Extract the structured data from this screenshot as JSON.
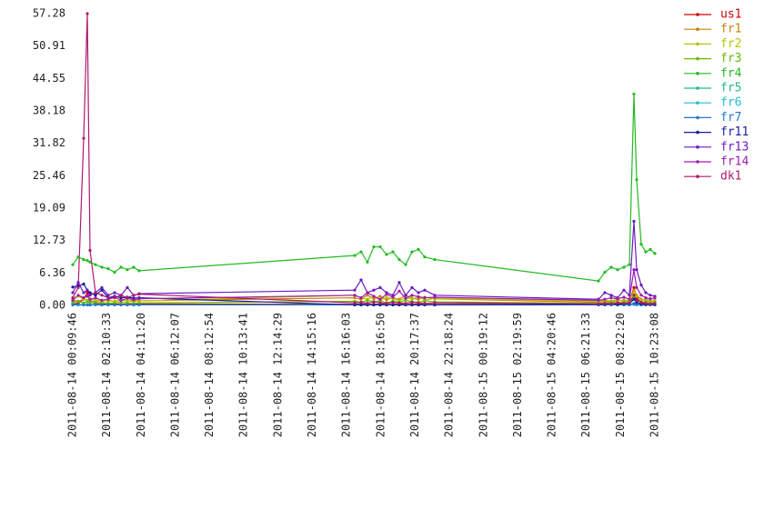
{
  "chart_data": {
    "type": "line",
    "x": [
      "2011-08-14 00:09:46",
      "2011-08-14 00:29:01",
      "2011-08-14 00:48:16",
      "2011-08-14 01:01:06",
      "2011-08-14 01:10:43",
      "2011-08-14 01:29:58",
      "2011-08-14 01:52:26",
      "2011-08-14 02:14:53",
      "2011-08-14 02:37:21",
      "2011-08-14 02:59:48",
      "2011-08-14 03:22:16",
      "2011-08-14 03:44:43",
      "2011-08-14 04:03:58",
      "2011-08-14 16:44:21",
      "2011-08-14 17:06:48",
      "2011-08-14 17:29:16",
      "2011-08-14 17:51:43",
      "2011-08-14 18:14:11",
      "2011-08-14 18:36:38",
      "2011-08-14 18:59:06",
      "2011-08-14 19:21:33",
      "2011-08-14 19:44:01",
      "2011-08-14 20:06:28",
      "2011-08-14 20:28:56",
      "2011-08-14 20:51:23",
      "2011-08-14 21:26:40",
      "2011-08-15 07:04:11",
      "2011-08-15 07:26:38",
      "2011-08-15 07:49:06",
      "2011-08-15 08:11:33",
      "2011-08-15 08:34:01",
      "2011-08-15 08:53:16",
      "2011-08-15 09:09:18",
      "2011-08-15 09:18:56",
      "2011-08-15 09:34:58",
      "2011-08-15 09:51:01",
      "2011-08-15 10:07:03",
      "2011-08-15 10:23:08"
    ],
    "xlim": [
      "2011-08-14 00:09:46",
      "2011-08-15 10:23:08"
    ],
    "xticks": [
      "2011-08-14 00:09:46",
      "2011-08-14 02:10:33",
      "2011-08-14 04:11:20",
      "2011-08-14 06:12:07",
      "2011-08-14 08:12:54",
      "2011-08-14 10:13:41",
      "2011-08-14 12:14:29",
      "2011-08-14 14:15:16",
      "2011-08-14 16:16:03",
      "2011-08-14 18:16:50",
      "2011-08-14 20:17:37",
      "2011-08-14 22:18:24",
      "2011-08-15 00:19:12",
      "2011-08-15 02:19:59",
      "2011-08-15 04:20:46",
      "2011-08-15 06:21:33",
      "2011-08-15 08:22:20",
      "2011-08-15 10:23:08"
    ],
    "ylim": [
      0,
      57.28
    ],
    "yticks": [
      {
        "value": 0,
        "label": "0.00"
      },
      6.36,
      12.73,
      19.09,
      25.46,
      31.82,
      38.18,
      44.55,
      50.91,
      57.28
    ],
    "grid": false,
    "legend": "right",
    "series": [
      {
        "name": "us1",
        "color": "#cc0000",
        "values": [
          0.3,
          0.4,
          1.2,
          2.5,
          0.8,
          0.3,
          0.3,
          0.2,
          0.3,
          0.2,
          0.3,
          0.2,
          0.3,
          0.2,
          0.3,
          0.2,
          0.2,
          0.3,
          0.2,
          0.2,
          0.3,
          0.2,
          0.2,
          0.3,
          0.2,
          0.2,
          0.2,
          0.2,
          0.3,
          0.2,
          0.3,
          0.5,
          3.5,
          1.5,
          0.5,
          0.3,
          0.2,
          0.3
        ]
      },
      {
        "name": "fr1",
        "color": "#c8800a",
        "values": [
          1.0,
          0.8,
          1.2,
          1.0,
          0.9,
          0.8,
          1.0,
          0.9,
          0.8,
          1.0,
          0.9,
          0.8,
          0.9,
          1.5,
          1.2,
          2.0,
          1.3,
          1.8,
          1.1,
          1.5,
          1.2,
          2.0,
          1.4,
          1.2,
          1.6,
          1.3,
          0.6,
          0.8,
          0.7,
          0.9,
          1.0,
          0.8,
          3.0,
          2.0,
          1.2,
          0.9,
          0.8,
          1.0
        ]
      },
      {
        "name": "fr2",
        "color": "#b8c400",
        "values": [
          1.5,
          1.8,
          1.2,
          1.0,
          1.3,
          1.1,
          0.9,
          1.0,
          0.8,
          1.1,
          0.9,
          1.0,
          0.9,
          2.0,
          1.5,
          1.2,
          1.8,
          1.0,
          1.6,
          1.3,
          0.9,
          1.5,
          1.2,
          1.7,
          1.0,
          1.4,
          0.8,
          1.0,
          0.9,
          1.2,
          0.8,
          1.1,
          2.5,
          1.8,
          1.0,
          1.2,
          0.9,
          1.1
        ]
      },
      {
        "name": "fr3",
        "color": "#66bb00",
        "values": [
          0.6,
          0.8,
          0.5,
          0.7,
          0.6,
          0.5,
          0.6,
          0.4,
          0.5,
          0.6,
          0.5,
          0.4,
          0.5,
          0.8,
          0.6,
          1.0,
          0.7,
          0.9,
          0.5,
          0.8,
          0.6,
          1.0,
          0.7,
          0.6,
          0.9,
          0.7,
          0.4,
          0.5,
          0.6,
          0.5,
          0.7,
          0.6,
          1.5,
          1.0,
          0.7,
          0.6,
          0.5,
          0.6
        ]
      },
      {
        "name": "fr4",
        "color": "#22bb22",
        "values": [
          8.0,
          9.5,
          9.0,
          8.8,
          8.5,
          8.0,
          7.5,
          7.2,
          6.5,
          7.5,
          7.0,
          7.5,
          6.8,
          9.8,
          10.5,
          8.5,
          11.5,
          11.5,
          10.0,
          10.5,
          9.0,
          8.0,
          10.5,
          11.0,
          9.5,
          9.0,
          4.8,
          6.5,
          7.5,
          7.0,
          7.5,
          8.0,
          41.5,
          24.7,
          12.0,
          10.5,
          11.0,
          10.2
        ]
      },
      {
        "name": "fr5",
        "color": "#22bb88",
        "values": [
          0.2,
          0.1,
          0.2,
          0.1,
          0.2,
          0.1,
          0.1,
          0.2,
          0.1,
          0.1,
          0.2,
          0.1,
          0.1,
          0.1,
          0.2,
          0.1,
          0.1,
          0.2,
          0.1,
          0.1,
          0.2,
          0.1,
          0.1,
          0.2,
          0.1,
          0.1,
          0.1,
          0.1,
          0.2,
          0.1,
          0.1,
          0.2,
          0.4,
          0.3,
          0.2,
          0.1,
          0.1,
          0.1
        ]
      },
      {
        "name": "fr6",
        "color": "#22bbcc",
        "values": [
          0.1,
          0.1,
          0.1,
          0.1,
          0.1,
          0.1,
          0.1,
          0.1,
          0.1,
          0.1,
          0.1,
          0.1,
          0.1,
          0.1,
          0.1,
          0.1,
          0.1,
          0.1,
          0.1,
          0.1,
          0.1,
          0.1,
          0.1,
          0.1,
          0.1,
          0.1,
          0.1,
          0.1,
          0.1,
          0.1,
          0.1,
          0.1,
          0.2,
          0.1,
          0.1,
          0.1,
          0.1,
          0.1
        ]
      },
      {
        "name": "fr7",
        "color": "#2277cc",
        "values": [
          0.1,
          0.2,
          0.1,
          0.1,
          0.1,
          0.2,
          0.1,
          0.1,
          0.1,
          0.1,
          0.1,
          0.1,
          0.1,
          0.1,
          0.1,
          0.1,
          0.1,
          0.1,
          0.1,
          0.1,
          0.1,
          0.1,
          0.1,
          0.1,
          0.1,
          0.1,
          0.1,
          0.1,
          0.1,
          0.1,
          0.1,
          0.1,
          0.3,
          0.2,
          0.1,
          0.1,
          0.1,
          0.1
        ]
      },
      {
        "name": "fr11",
        "color": "#1a1aa0",
        "values": [
          3.6,
          3.8,
          4.2,
          3.0,
          2.5,
          2.0,
          3.0,
          1.5,
          1.8,
          1.5,
          1.6,
          1.4,
          1.5,
          0.1,
          0.1,
          0.1,
          0.1,
          0.1,
          0.1,
          0.1,
          0.1,
          0.1,
          0.1,
          0.1,
          0.1,
          0.1,
          0.2,
          0.2,
          0.3,
          0.2,
          0.3,
          0.4,
          1.2,
          0.6,
          0.3,
          0.2,
          0.2,
          0.2
        ]
      },
      {
        "name": "fr13",
        "color": "#6a1ac0",
        "values": [
          2.5,
          4.5,
          2.5,
          3.0,
          2.0,
          2.5,
          3.5,
          2.0,
          2.5,
          2.0,
          3.5,
          2.0,
          2.3,
          3.0,
          5.0,
          2.5,
          3.0,
          3.5,
          2.5,
          2.0,
          4.5,
          2.0,
          3.5,
          2.5,
          3.0,
          2.0,
          1.2,
          2.5,
          2.0,
          1.5,
          3.0,
          2.0,
          16.5,
          7.0,
          4.0,
          2.5,
          2.0,
          1.8
        ]
      },
      {
        "name": "fr14",
        "color": "#a01ab0",
        "values": [
          1.0,
          2.0,
          1.5,
          1.8,
          1.2,
          1.5,
          1.0,
          1.2,
          1.6,
          1.0,
          1.4,
          1.1,
          1.3,
          2.0,
          1.5,
          2.5,
          1.8,
          1.2,
          2.2,
          1.6,
          2.8,
          1.4,
          2.0,
          1.7,
          1.5,
          1.6,
          1.0,
          1.2,
          1.5,
          1.3,
          1.6,
          1.2,
          7.0,
          3.5,
          2.0,
          1.5,
          1.3,
          1.5
        ]
      },
      {
        "name": "dk1",
        "color": "#b0186e",
        "values": [
          1.5,
          3.5,
          32.8,
          57.28,
          10.8,
          2.5,
          2.0,
          1.5,
          1.5,
          2.0,
          1.5,
          2.0,
          2.2,
          0.5,
          0.6,
          0.4,
          0.7,
          0.5,
          0.4,
          0.6,
          0.5,
          0.4,
          0.6,
          0.5,
          0.4,
          0.5,
          0.3,
          0.4,
          0.3,
          0.5,
          0.4,
          0.5,
          2.0,
          1.0,
          0.6,
          0.4,
          0.3,
          0.4
        ]
      }
    ]
  }
}
